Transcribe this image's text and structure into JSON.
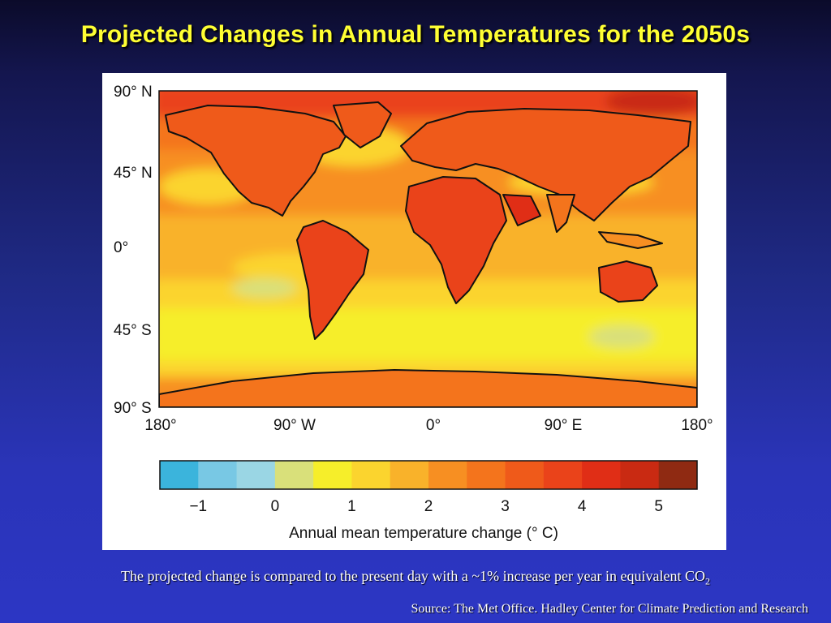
{
  "slide": {
    "title": "Projected Changes in Annual Temperatures for the 2050s",
    "caption_prefix": "The projected change is compared to the present day with a ~1% increase per year in equivalent CO",
    "caption_subscript": "2",
    "source": "Source: The Met Office. Hadley Center for Climate Prediction and Research"
  },
  "map": {
    "latitude_labels": [
      "90° N",
      "45° N",
      "0°",
      "45° S",
      "90° S"
    ],
    "longitude_labels": [
      "180°",
      "90° W",
      "0°",
      "90° E",
      "180°"
    ]
  },
  "colorbar": {
    "label": "Annual mean temperature change (° C)",
    "tick_labels": [
      "−1",
      "0",
      "1",
      "2",
      "3",
      "4",
      "5"
    ],
    "colors": [
      "#3bb4dc",
      "#78c8e4",
      "#9ad6e4",
      "#d9e07a",
      "#f6ee2a",
      "#fbd42e",
      "#f9b22a",
      "#f78f22",
      "#f4741c",
      "#ef5a1a",
      "#ea431a",
      "#e02e16",
      "#c92a12",
      "#8f2a12"
    ]
  },
  "colors": {
    "title": "#ffff33",
    "background_top": "#0b0b2a",
    "background_bottom": "#2c36c4"
  }
}
